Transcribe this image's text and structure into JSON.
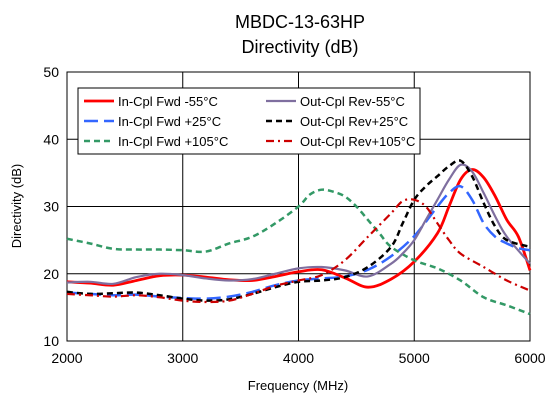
{
  "chart_data": {
    "type": "line",
    "title": "MBDC-13-63HP",
    "subtitle": "Directivity (dB)",
    "xlabel": "Frequency (MHz)",
    "ylabel": "Directivity (dB)",
    "xlim": [
      2000,
      6000
    ],
    "ylim": [
      10,
      50
    ],
    "xticks": [
      "2000",
      "3000",
      "4000",
      "5000",
      "6000"
    ],
    "yticks": [
      "10",
      "20",
      "30",
      "40",
      "50"
    ],
    "grid": true,
    "legend_position": "top-left inside plot, two columns",
    "series": [
      {
        "name": "In-Cpl Fwd -55°C",
        "color": "#ff0000",
        "style": "solid",
        "x": [
          2000,
          2200,
          2400,
          2600,
          2800,
          3000,
          3200,
          3400,
          3600,
          3800,
          4000,
          4200,
          4400,
          4600,
          4800,
          5000,
          5200,
          5300,
          5400,
          5500,
          5600,
          5700,
          5800,
          5900,
          6000
        ],
        "y": [
          18.8,
          18.6,
          18.3,
          19.0,
          19.7,
          19.8,
          19.5,
          19.1,
          19.0,
          19.6,
          20.3,
          20.6,
          19.4,
          18.0,
          19.2,
          21.8,
          26.0,
          30.0,
          34.0,
          35.5,
          34.3,
          31.5,
          28.0,
          25.5,
          20.5
        ]
      },
      {
        "name": "In-Cpl Fwd +25°C",
        "color": "#3366ff",
        "style": "long-dash",
        "x": [
          2000,
          2200,
          2400,
          2600,
          2800,
          3000,
          3200,
          3400,
          3600,
          3800,
          4000,
          4200,
          4400,
          4600,
          4800,
          5000,
          5200,
          5300,
          5400,
          5500,
          5600,
          5700,
          5800,
          5900,
          6000
        ],
        "y": [
          17.2,
          17.0,
          16.8,
          16.9,
          16.6,
          16.4,
          16.3,
          16.6,
          17.3,
          18.3,
          19.0,
          19.3,
          19.6,
          20.6,
          22.6,
          25.6,
          30.0,
          32.0,
          33.0,
          31.0,
          27.5,
          25.5,
          24.5,
          23.8,
          23.5
        ]
      },
      {
        "name": "In-Cpl Fwd +105°C",
        "color": "#339966",
        "style": "dash",
        "x": [
          2000,
          2200,
          2400,
          2600,
          2800,
          3000,
          3200,
          3400,
          3600,
          3800,
          4000,
          4100,
          4200,
          4300,
          4400,
          4500,
          4600,
          4700,
          4800,
          5000,
          5200,
          5400,
          5600,
          5800,
          6000
        ],
        "y": [
          25.2,
          24.5,
          23.7,
          23.6,
          23.6,
          23.5,
          23.3,
          24.5,
          25.5,
          27.5,
          30.0,
          31.8,
          32.5,
          32.2,
          31.5,
          30.0,
          28.0,
          26.0,
          24.0,
          22.0,
          20.8,
          19.0,
          16.5,
          15.3,
          14.0
        ]
      },
      {
        "name": "Out-Cpl Rev-55°C",
        "color": "#7f6f9f",
        "style": "solid",
        "x": [
          2000,
          2200,
          2400,
          2600,
          2800,
          3000,
          3200,
          3400,
          3600,
          3800,
          4000,
          4200,
          4400,
          4600,
          4800,
          4900,
          5000,
          5100,
          5200,
          5300,
          5400,
          5500,
          5600,
          5700,
          5800,
          6000
        ],
        "y": [
          18.7,
          18.8,
          18.5,
          19.5,
          20.0,
          19.8,
          19.3,
          19.0,
          19.2,
          20.0,
          20.8,
          21.0,
          20.5,
          19.6,
          21.5,
          23.0,
          25.0,
          28.0,
          31.0,
          34.0,
          36.2,
          35.2,
          32.0,
          28.5,
          25.5,
          21.5
        ]
      },
      {
        "name": "Out-Cpl Rev+25°C",
        "color": "#000000",
        "style": "dash",
        "x": [
          2000,
          2200,
          2400,
          2600,
          2800,
          3000,
          3200,
          3400,
          3600,
          3800,
          4000,
          4200,
          4400,
          4600,
          4800,
          4900,
          5000,
          5100,
          5200,
          5300,
          5400,
          5500,
          5600,
          5700,
          5800,
          6000
        ],
        "y": [
          17.3,
          17.0,
          17.1,
          17.2,
          16.8,
          16.3,
          16.0,
          16.2,
          17.0,
          18.0,
          18.8,
          19.0,
          19.5,
          21.0,
          24.0,
          27.5,
          31.0,
          33.0,
          34.5,
          36.0,
          36.8,
          34.5,
          30.5,
          27.0,
          25.0,
          24.0
        ]
      },
      {
        "name": "Out-Cpl Rev+105°C",
        "color": "#cc0000",
        "style": "dash-dot",
        "x": [
          2000,
          2200,
          2400,
          2600,
          2800,
          3000,
          3200,
          3400,
          3600,
          3800,
          4000,
          4200,
          4400,
          4600,
          4800,
          4900,
          5000,
          5100,
          5200,
          5300,
          5400,
          5600,
          5800,
          6000
        ],
        "y": [
          17.0,
          16.8,
          16.6,
          16.8,
          16.5,
          16.0,
          15.8,
          16.0,
          17.0,
          18.2,
          19.0,
          19.8,
          22.0,
          25.5,
          29.0,
          30.8,
          31.0,
          30.0,
          27.5,
          25.0,
          23.0,
          21.0,
          19.0,
          17.5
        ]
      }
    ]
  }
}
